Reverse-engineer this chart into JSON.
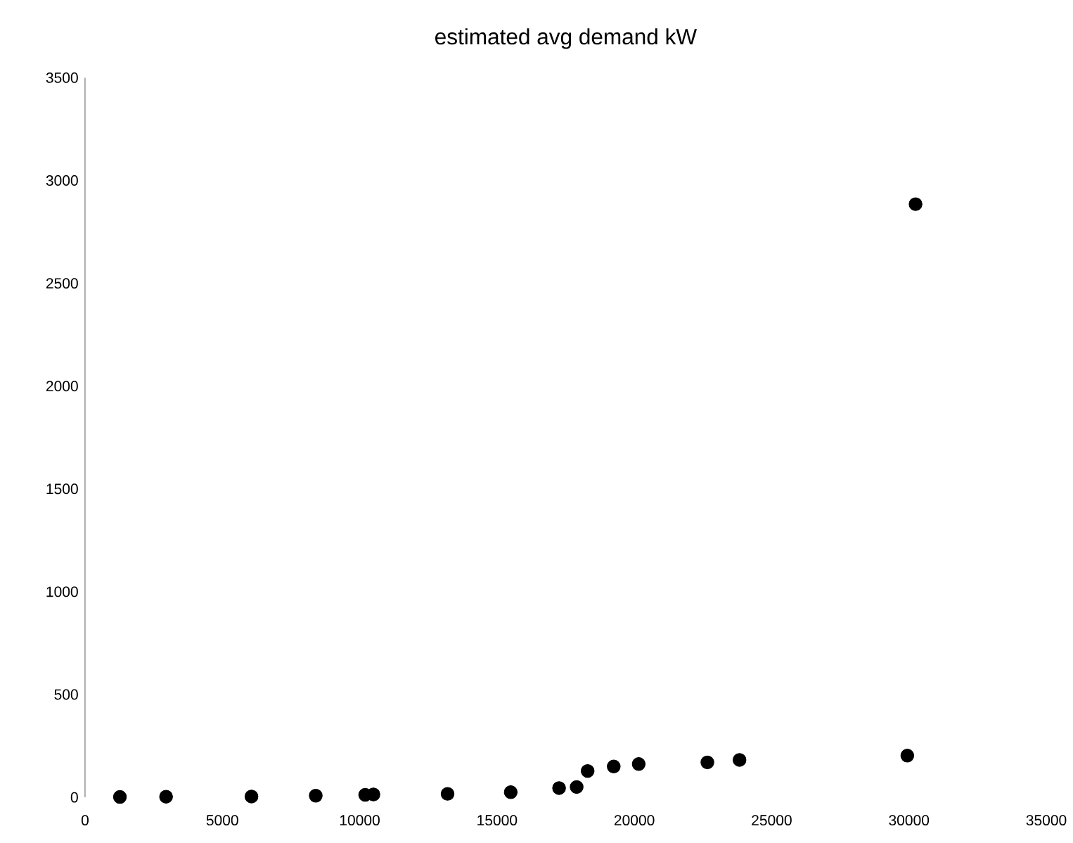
{
  "chart_data": {
    "type": "scatter",
    "title": "estimated avg demand kW",
    "marker": "circle",
    "grid": false,
    "xlim": [
      0,
      35000
    ],
    "xticks": [
      0,
      5000,
      10000,
      15000,
      20000,
      25000,
      30000,
      35000
    ],
    "ylim": [
      0,
      3500
    ],
    "yticks": [
      0,
      500,
      1000,
      1500,
      2000,
      2500,
      3000,
      3500
    ],
    "series": [
      {
        "color": "#000000",
        "x": [
          1270,
          2950,
          6060,
          8400,
          10200,
          10500,
          13200,
          15500,
          17260,
          17900,
          18300,
          19250,
          20160,
          22660,
          23830,
          29940,
          30240
        ],
        "values": [
          2,
          3,
          4,
          8,
          12,
          14,
          17,
          25,
          45,
          50,
          128,
          150,
          162,
          170,
          182,
          203,
          2885
        ]
      }
    ]
  }
}
